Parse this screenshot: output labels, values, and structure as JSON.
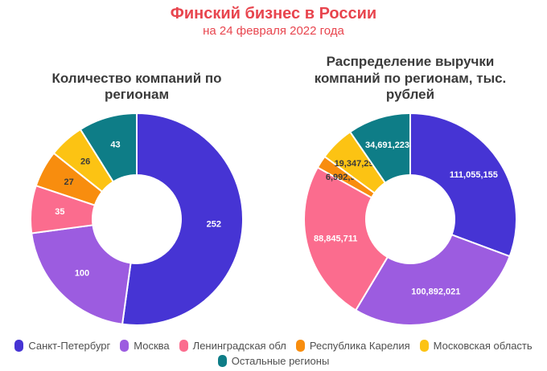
{
  "header": {
    "title": "Финский бизнес в России",
    "subtitle": "на 24 февраля 2022 года",
    "accent_color": "#e8454e"
  },
  "legend": {
    "items": [
      {
        "label": "Санкт-Петербург",
        "color": "#4634d4"
      },
      {
        "label": "Москва",
        "color": "#9c5ce0"
      },
      {
        "label": "Ленинградская обл",
        "color": "#fb6c8e"
      },
      {
        "label": "Республика Карелия",
        "color": "#f88d0e"
      },
      {
        "label": "Московская область",
        "color": "#fcc313"
      },
      {
        "label": "Остальные регионы",
        "color": "#0e7d87"
      }
    ]
  },
  "chart_data": [
    {
      "type": "pie",
      "subtype": "donut",
      "hole": 0.42,
      "title": "Количество компаний по регионам",
      "categories": [
        "Санкт-Петербург",
        "Москва",
        "Ленинградская обл",
        "Республика Карелия",
        "Московская область",
        "Остальные регионы"
      ],
      "values": [
        252,
        100,
        35,
        27,
        26,
        43
      ],
      "labels": [
        "252",
        "100",
        "35",
        "27",
        "26",
        "43"
      ],
      "colors": [
        "#4634d4",
        "#9c5ce0",
        "#fb6c8e",
        "#f88d0e",
        "#fcc313",
        "#0e7d87"
      ],
      "label_colors": [
        "#ffffff",
        "#ffffff",
        "#ffffff",
        "#3a3a3a",
        "#3a3a3a",
        "#ffffff"
      ]
    },
    {
      "type": "pie",
      "subtype": "donut",
      "hole": 0.42,
      "title": "Распределение выручки компаний по регионам, тыс. рублей",
      "categories": [
        "Санкт-Петербург",
        "Москва",
        "Ленинградская обл",
        "Республика Карелия",
        "Московская область",
        "Остальные регионы"
      ],
      "values": [
        111055155,
        100892021,
        88845711,
        6992940,
        19347295,
        34691223
      ],
      "labels": [
        "111,055,155",
        "100,892,021",
        "88,845,711",
        "6,992,940",
        "19,347,295",
        "34,691,223"
      ],
      "colors": [
        "#4634d4",
        "#9c5ce0",
        "#fb6c8e",
        "#f88d0e",
        "#fcc313",
        "#0e7d87"
      ],
      "label_colors": [
        "#ffffff",
        "#ffffff",
        "#ffffff",
        "#3a3a3a",
        "#3a3a3a",
        "#ffffff"
      ]
    }
  ]
}
